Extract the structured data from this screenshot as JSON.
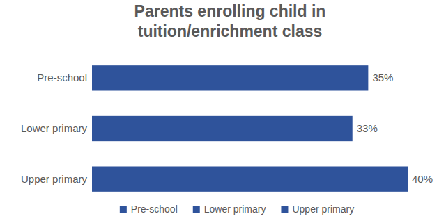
{
  "chart_data": {
    "type": "bar",
    "orientation": "horizontal",
    "title": "Parents enrolling child in tuition/enrichment class",
    "categories": [
      "Pre-school",
      "Lower primary",
      "Upper primary"
    ],
    "values": [
      35,
      33,
      40
    ],
    "value_labels": [
      "35%",
      "33%",
      "40%"
    ],
    "color": "#2f539b",
    "xlim": [
      0,
      40
    ],
    "data_labels": true,
    "tick_labels": "y",
    "grid": false,
    "legend": "bottom"
  }
}
